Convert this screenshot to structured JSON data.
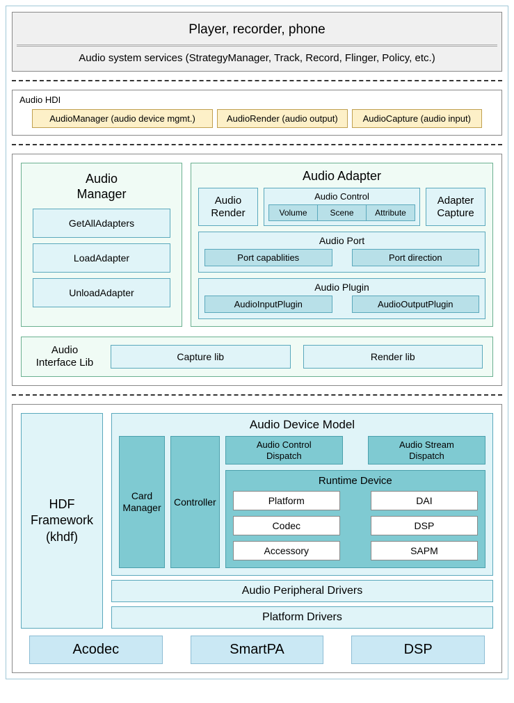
{
  "top": {
    "title": "Player, recorder, phone",
    "subtitle": "Audio system services (StrategyManager, Track, Record, Flinger, Policy, etc.)"
  },
  "hdi": {
    "label": "Audio HDI",
    "items": [
      "AudioManager (audio device mgmt.)",
      "AudioRender (audio output)",
      "AudioCapture (audio input)"
    ]
  },
  "audio_manager": {
    "title": "Audio\nManager",
    "items": [
      "GetAllAdapters",
      "LoadAdapter",
      "UnloadAdapter"
    ]
  },
  "audio_adapter": {
    "title": "Audio Adapter",
    "render": "Audio\nRender",
    "capture": "Adapter\nCapture",
    "control": {
      "title": "Audio Control",
      "cells": [
        "Volume",
        "Scene",
        "Attribute"
      ]
    },
    "port": {
      "title": "Audio Port",
      "items": [
        "Port capablities",
        "Port direction"
      ]
    },
    "plugin": {
      "title": "Audio Plugin",
      "items": [
        "AudioInputPlugin",
        "AudioOutputPlugin"
      ]
    }
  },
  "iface": {
    "label": "Audio\nInterface Lib",
    "items": [
      "Capture lib",
      "Render lib"
    ]
  },
  "hdf": {
    "left": "HDF\nFramework\n(khdf)",
    "adm": {
      "title": "Audio Device Model",
      "card": "Card\nManager",
      "controller": "Controller",
      "dispatch": [
        "Audio Control\nDispatch",
        "Audio Stream\nDispatch"
      ],
      "runtime": {
        "title": "Runtime Device",
        "grid": [
          [
            "Platform",
            "DAI"
          ],
          [
            "Codec",
            "DSP"
          ],
          [
            "Accessory",
            "SAPM"
          ]
        ]
      }
    },
    "peripheral": "Audio Peripheral Drivers",
    "platform": "Platform Drivers"
  },
  "hw": [
    "Acodec",
    "SmartPA",
    "DSP"
  ],
  "colors": {
    "mint_bg": "#f0fbf5",
    "mint_border": "#6bb090",
    "cyan_bg": "#e0f4f8",
    "cyan_border": "#5aa8bc",
    "cyan_dark_bg": "#b8e0e8",
    "teal_bg": "#7fcad2",
    "teal_border": "#4aa0ac",
    "hdi_bg": "#fdf0c8",
    "hdi_border": "#c0a050",
    "gray_bg": "#f0f0f0",
    "hw_bg": "#cae8f4",
    "hw_border": "#8cbcd4"
  }
}
